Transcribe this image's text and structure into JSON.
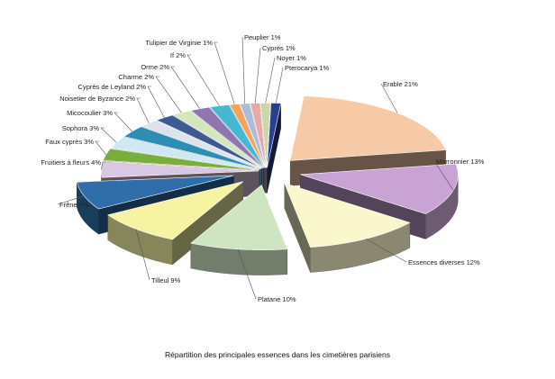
{
  "chart_data": {
    "type": "pie",
    "title": "Répartition des principales essences dans les cimetières parisiens",
    "three_d": true,
    "exploded": true,
    "unit": "%",
    "slices": [
      {
        "label": "Erable",
        "value": 21,
        "color": "#f6c9a7"
      },
      {
        "label": "Marronnier",
        "value": 13,
        "color": "#c9a3d3"
      },
      {
        "label": "Essences diverses",
        "value": 12,
        "color": "#fbf7cc"
      },
      {
        "label": "Platane",
        "value": 10,
        "color": "#cfe5c2"
      },
      {
        "label": "Tilleul",
        "value": 9,
        "color": "#f6f3a3"
      },
      {
        "label": "Frêne",
        "value": 7,
        "color": "#2f6ea8"
      },
      {
        "label": "Fruitiers à fleurs",
        "value": 4,
        "color": "#d9c8e3"
      },
      {
        "label": "Faux cyprès",
        "value": 3,
        "color": "#77ae3c"
      },
      {
        "label": "Sophora",
        "value": 3,
        "color": "#cfe8f2"
      },
      {
        "label": "Micocoulier",
        "value": 3,
        "color": "#2b8fb3"
      },
      {
        "label": "Noisetier de Byzance",
        "value": 2,
        "color": "#dde3ec"
      },
      {
        "label": "Cyprès de Leyland",
        "value": 2,
        "color": "#3d5a93"
      },
      {
        "label": "Charme",
        "value": 2,
        "color": "#d3e6bc"
      },
      {
        "label": "Orme",
        "value": 2,
        "color": "#8f76b1"
      },
      {
        "label": "If",
        "value": 2,
        "color": "#47b6d3"
      },
      {
        "label": "Tulipier de Virginie",
        "value": 1,
        "color": "#f5a25a"
      },
      {
        "label": "Peuplier",
        "value": 1,
        "color": "#a9bedc"
      },
      {
        "label": "Cyprès",
        "value": 1,
        "color": "#e9a9a6"
      },
      {
        "label": "Noyer",
        "value": 1,
        "color": "#c8d9a8"
      },
      {
        "label": "Pterocarya",
        "value": 1,
        "color": "#2a3f8f"
      }
    ]
  }
}
